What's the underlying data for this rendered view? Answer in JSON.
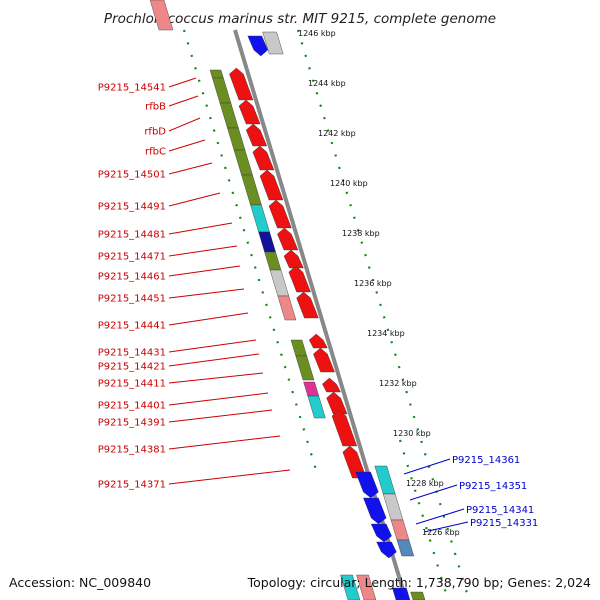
{
  "title": "Prochlorococcus marinus str. MIT 9215, complete genome",
  "footer": {
    "accession": "Accession: NC_009840",
    "stats": "Topology: circular; Length: 1,738,790 bp; Genes: 2,024"
  },
  "colors": {
    "forward_gene": "#ee1111",
    "reverse_gene": "#1111ee",
    "olive": "#6b8e23",
    "cyan": "#22cccc",
    "navy": "#111199",
    "grey": "#c8c8c8",
    "pink": "#ee8888",
    "magenta": "#dd3399",
    "steel": "#5588bb",
    "tick": "#118811",
    "backbone": "#888888",
    "label_forward": "#cc0000",
    "label_reverse": "#0000cc"
  },
  "scale": [
    "1246 kbp",
    "1244 kbp",
    "1242 kbp",
    "1240 kbp",
    "1238 kbp",
    "1236 kbp",
    "1234 kbp",
    "1232 kbp",
    "1230 kbp",
    "1228 kbp",
    "1226 kbp"
  ],
  "labels_left": [
    "P9215_14541",
    "rfbB",
    "rfbD",
    "rfbC",
    "P9215_14501",
    "P9215_14491",
    "P9215_14481",
    "P9215_14471",
    "P9215_14461",
    "P9215_14451",
    "P9215_14441",
    "P9215_14431",
    "P9215_14421",
    "P9215_14411",
    "P9215_14401",
    "P9215_14391",
    "P9215_14381",
    "P9215_14371"
  ],
  "labels_right": [
    "P9215_14361",
    "P9215_14351",
    "P9215_14341",
    "P9215_14331"
  ]
}
